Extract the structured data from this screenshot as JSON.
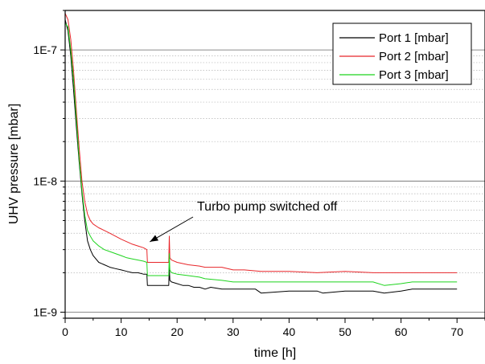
{
  "chart_data": {
    "type": "line",
    "title": "",
    "xlabel": "time [h]",
    "ylabel": "UHV pressure [mbar]",
    "xlim": [
      0,
      75
    ],
    "ylim": [
      9e-10,
      2e-07
    ],
    "y_scale": "log",
    "x_ticks": [
      0,
      10,
      20,
      30,
      40,
      50,
      60,
      70
    ],
    "x_tick_labels": [
      "0",
      "10",
      "20",
      "30",
      "40",
      "50",
      "60",
      "70"
    ],
    "y_ticks": [
      1e-09,
      1e-08,
      1e-07
    ],
    "y_tick_labels": [
      "1E-9",
      "1E-8",
      "1E-7"
    ],
    "grid": "major lines solid, minor lines dotted (horizontal)",
    "legend_position": "top-right",
    "annotation": {
      "text": "Turbo pump switched off",
      "x": 14.7,
      "y": 3.3e-09
    },
    "series": [
      {
        "name": "Port 1 [mbar]",
        "color": "#000000",
        "x": [
          0,
          0.5,
          1,
          1.5,
          2,
          2.5,
          3,
          3.5,
          4,
          4.5,
          5,
          6,
          7,
          8,
          9,
          10,
          11,
          12,
          13,
          14,
          14.6,
          14.7,
          15,
          18.5,
          18.6,
          18.7,
          19,
          20,
          21,
          22,
          23,
          24,
          25,
          26,
          28,
          30,
          32,
          34,
          35,
          40,
          45,
          46,
          50,
          55,
          57,
          60,
          62,
          65,
          70
        ],
        "y": [
          1.7e-07,
          1.4e-07,
          9e-08,
          5e-08,
          2.6e-08,
          1.4e-08,
          8e-09,
          5e-09,
          3.5e-09,
          3e-09,
          2.7e-09,
          2.4e-09,
          2.3e-09,
          2.2e-09,
          2.15e-09,
          2.1e-09,
          2.05e-09,
          2e-09,
          2e-09,
          1.95e-09,
          1.95e-09,
          1.6e-09,
          1.6e-09,
          1.6e-09,
          2.2e-09,
          1.75e-09,
          1.7e-09,
          1.65e-09,
          1.6e-09,
          1.6e-09,
          1.55e-09,
          1.55e-09,
          1.5e-09,
          1.55e-09,
          1.5e-09,
          1.5e-09,
          1.5e-09,
          1.5e-09,
          1.4e-09,
          1.45e-09,
          1.45e-09,
          1.4e-09,
          1.45e-09,
          1.45e-09,
          1.4e-09,
          1.45e-09,
          1.5e-09,
          1.5e-09,
          1.5e-09
        ]
      },
      {
        "name": "Port 2 [mbar]",
        "color": "#e8262a",
        "x": [
          0,
          0.5,
          1,
          1.5,
          2,
          2.5,
          3,
          3.5,
          4,
          4.5,
          5,
          6,
          7,
          8,
          9,
          10,
          11,
          12,
          13,
          14,
          14.6,
          14.7,
          15,
          18.5,
          18.6,
          18.7,
          19,
          20,
          22,
          24,
          25,
          28,
          30,
          32,
          35,
          40,
          45,
          50,
          55,
          58,
          60,
          62,
          65,
          70
        ],
        "y": [
          1.9e-07,
          1.7e-07,
          1.2e-07,
          7e-08,
          3.5e-08,
          1.8e-08,
          1e-08,
          7e-09,
          5.6e-09,
          5e-09,
          4.7e-09,
          4.4e-09,
          4.2e-09,
          4e-09,
          3.8e-09,
          3.6e-09,
          3.45e-09,
          3.3e-09,
          3.2e-09,
          3.1e-09,
          3e-09,
          2.4e-09,
          2.4e-09,
          2.4e-09,
          3.8e-09,
          2.6e-09,
          2.5e-09,
          2.4e-09,
          2.3e-09,
          2.25e-09,
          2.2e-09,
          2.2e-09,
          2.1e-09,
          2.1e-09,
          2.05e-09,
          2.05e-09,
          2e-09,
          2.05e-09,
          2e-09,
          2e-09,
          2e-09,
          2e-09,
          2e-09,
          2e-09
        ]
      },
      {
        "name": "Port 3 [mbar]",
        "color": "#1ed41e",
        "x": [
          0,
          0.5,
          1,
          1.5,
          2,
          2.5,
          3,
          3.5,
          4,
          4.5,
          5,
          6,
          7,
          8,
          9,
          10,
          11,
          12,
          13,
          14,
          14.6,
          14.7,
          15,
          18.5,
          18.6,
          18.7,
          19,
          20,
          22,
          24,
          25,
          28,
          30,
          32,
          35,
          40,
          45,
          50,
          55,
          57,
          60,
          62,
          65,
          70
        ],
        "y": [
          1.6e-07,
          1.5e-07,
          1e-07,
          6e-08,
          3e-08,
          1.5e-08,
          8.5e-09,
          5.5e-09,
          4.2e-09,
          3.8e-09,
          3.5e-09,
          3.2e-09,
          3e-09,
          2.9e-09,
          2.8e-09,
          2.7e-09,
          2.6e-09,
          2.55e-09,
          2.5e-09,
          2.45e-09,
          2.4e-09,
          1.9e-09,
          1.9e-09,
          1.9e-09,
          2.8e-09,
          2.1e-09,
          2e-09,
          1.95e-09,
          1.9e-09,
          1.85e-09,
          1.8e-09,
          1.75e-09,
          1.7e-09,
          1.7e-09,
          1.7e-09,
          1.7e-09,
          1.7e-09,
          1.7e-09,
          1.7e-09,
          1.6e-09,
          1.65e-09,
          1.7e-09,
          1.7e-09,
          1.7e-09
        ]
      }
    ]
  }
}
